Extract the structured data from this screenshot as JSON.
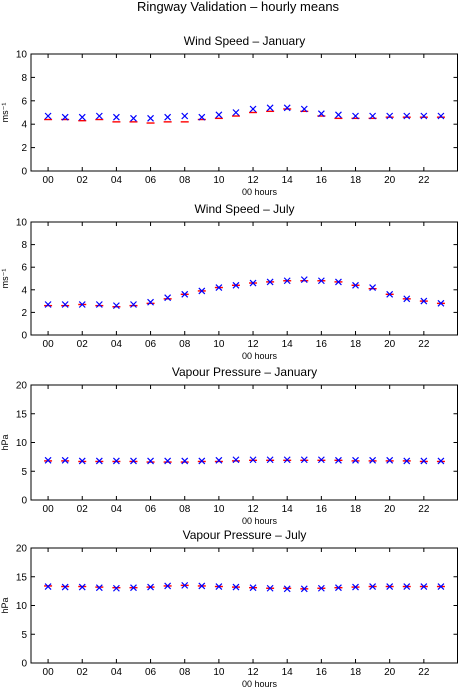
{
  "figure": {
    "title": "Ringway Validation – hourly means"
  },
  "chart_data": [
    {
      "type": "scatter",
      "title": "Wind Speed – January",
      "xlabel": "00 hours",
      "ylabel": "ms⁻¹",
      "xlim": [
        -1,
        24
      ],
      "ylim": [
        0,
        10
      ],
      "yticks": [
        0,
        2,
        4,
        6,
        8,
        10
      ],
      "xticks": [
        0,
        2,
        4,
        6,
        8,
        10,
        12,
        14,
        16,
        18,
        20,
        22
      ],
      "xtick_labels": [
        "00",
        "02",
        "04",
        "06",
        "08",
        "10",
        "12",
        "14",
        "16",
        "18",
        "20",
        "22"
      ],
      "x": [
        0,
        1,
        2,
        3,
        4,
        5,
        6,
        7,
        8,
        9,
        10,
        11,
        12,
        13,
        14,
        15,
        16,
        17,
        18,
        19,
        20,
        21,
        22,
        23
      ],
      "series": [
        {
          "marker": "line",
          "color": "#ff0000",
          "values": [
            4.4,
            4.4,
            4.3,
            4.4,
            4.2,
            4.2,
            4.1,
            4.2,
            4.2,
            4.4,
            4.5,
            4.7,
            5.0,
            5.1,
            5.3,
            5.1,
            4.7,
            4.5,
            4.5,
            4.5,
            4.6,
            4.6,
            4.6,
            4.6
          ]
        },
        {
          "marker": "x",
          "color": "#0000ff",
          "values": [
            4.7,
            4.6,
            4.6,
            4.7,
            4.6,
            4.5,
            4.5,
            4.6,
            4.7,
            4.6,
            4.8,
            5.0,
            5.3,
            5.4,
            5.4,
            5.3,
            4.9,
            4.8,
            4.7,
            4.7,
            4.7,
            4.7,
            4.7,
            4.7
          ]
        }
      ]
    },
    {
      "type": "scatter",
      "title": "Wind Speed – July",
      "xlabel": "00 hours",
      "ylabel": "ms⁻¹",
      "xlim": [
        -1,
        24
      ],
      "ylim": [
        0,
        10
      ],
      "yticks": [
        0,
        2,
        4,
        6,
        8,
        10
      ],
      "xticks": [
        0,
        2,
        4,
        6,
        8,
        10,
        12,
        14,
        16,
        18,
        20,
        22
      ],
      "xtick_labels": [
        "00",
        "02",
        "04",
        "06",
        "08",
        "10",
        "12",
        "14",
        "16",
        "18",
        "20",
        "22"
      ],
      "x": [
        0,
        1,
        2,
        3,
        4,
        5,
        6,
        7,
        8,
        9,
        10,
        11,
        12,
        13,
        14,
        15,
        16,
        17,
        18,
        19,
        20,
        21,
        22,
        23
      ],
      "series": [
        {
          "marker": "line",
          "color": "#ff0000",
          "values": [
            2.6,
            2.6,
            2.7,
            2.6,
            2.5,
            2.6,
            2.8,
            3.2,
            3.6,
            3.9,
            4.2,
            4.4,
            4.6,
            4.7,
            4.8,
            4.8,
            4.8,
            4.7,
            4.4,
            4.1,
            3.6,
            3.2,
            3.0,
            2.8
          ]
        },
        {
          "marker": "x",
          "color": "#0000ff",
          "values": [
            2.7,
            2.7,
            2.7,
            2.7,
            2.6,
            2.7,
            2.9,
            3.3,
            3.6,
            3.9,
            4.2,
            4.4,
            4.6,
            4.7,
            4.8,
            4.9,
            4.8,
            4.7,
            4.4,
            4.2,
            3.6,
            3.2,
            3.0,
            2.8
          ]
        }
      ]
    },
    {
      "type": "scatter",
      "title": "Vapour Pressure – January",
      "xlabel": "00 hours",
      "ylabel": "hPa",
      "xlim": [
        -1,
        24
      ],
      "ylim": [
        0,
        20
      ],
      "yticks": [
        0,
        5,
        10,
        15,
        20
      ],
      "xticks": [
        0,
        2,
        4,
        6,
        8,
        10,
        12,
        14,
        16,
        18,
        20,
        22
      ],
      "xtick_labels": [
        "00",
        "02",
        "04",
        "06",
        "08",
        "10",
        "12",
        "14",
        "16",
        "18",
        "20",
        "22"
      ],
      "x": [
        0,
        1,
        2,
        3,
        4,
        5,
        6,
        7,
        8,
        9,
        10,
        11,
        12,
        13,
        14,
        15,
        16,
        17,
        18,
        19,
        20,
        21,
        22,
        23
      ],
      "series": [
        {
          "marker": "line",
          "color": "#ff0000",
          "values": [
            6.8,
            6.8,
            6.7,
            6.7,
            6.7,
            6.7,
            6.6,
            6.6,
            6.6,
            6.7,
            6.7,
            6.8,
            6.9,
            6.9,
            6.9,
            6.9,
            6.9,
            6.9,
            6.8,
            6.8,
            6.8,
            6.8,
            6.7,
            6.7
          ]
        },
        {
          "marker": "x",
          "color": "#0000ff",
          "values": [
            6.9,
            6.9,
            6.8,
            6.8,
            6.8,
            6.8,
            6.8,
            6.8,
            6.8,
            6.8,
            6.9,
            7.0,
            7.0,
            7.0,
            7.0,
            7.0,
            7.0,
            6.9,
            6.9,
            6.9,
            6.9,
            6.8,
            6.8,
            6.8
          ]
        }
      ]
    },
    {
      "type": "scatter",
      "title": "Vapour Pressure – July",
      "xlabel": "00 hours",
      "ylabel": "hPa",
      "xlim": [
        -1,
        24
      ],
      "ylim": [
        0,
        20
      ],
      "yticks": [
        0,
        5,
        10,
        15,
        20
      ],
      "xticks": [
        0,
        2,
        4,
        6,
        8,
        10,
        12,
        14,
        16,
        18,
        20,
        22
      ],
      "xtick_labels": [
        "00",
        "02",
        "04",
        "06",
        "08",
        "10",
        "12",
        "14",
        "16",
        "18",
        "20",
        "22"
      ],
      "x": [
        0,
        1,
        2,
        3,
        4,
        5,
        6,
        7,
        8,
        9,
        10,
        11,
        12,
        13,
        14,
        15,
        16,
        17,
        18,
        19,
        20,
        21,
        22,
        23
      ],
      "series": [
        {
          "marker": "line",
          "color": "#ff0000",
          "values": [
            13.4,
            13.3,
            13.3,
            13.2,
            13.1,
            13.1,
            13.2,
            13.4,
            13.5,
            13.4,
            13.3,
            13.2,
            13.1,
            13.0,
            13.0,
            12.9,
            13.0,
            13.1,
            13.2,
            13.3,
            13.3,
            13.3,
            13.3,
            13.3
          ]
        },
        {
          "marker": "x",
          "color": "#0000ff",
          "values": [
            13.3,
            13.2,
            13.2,
            13.1,
            13.0,
            13.1,
            13.2,
            13.4,
            13.5,
            13.4,
            13.3,
            13.2,
            13.1,
            13.0,
            12.9,
            12.9,
            13.0,
            13.1,
            13.2,
            13.3,
            13.3,
            13.3,
            13.3,
            13.3
          ]
        }
      ]
    }
  ]
}
